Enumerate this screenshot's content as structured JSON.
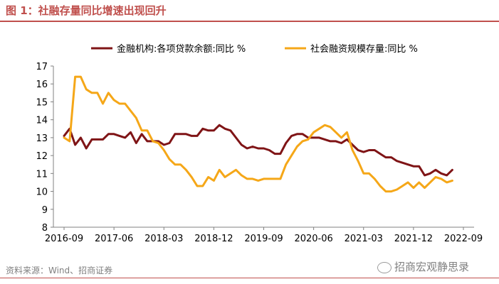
{
  "figure": {
    "title": "图 1：社融存量同比增速出现回升",
    "source": "资料来源：Wind、招商证券",
    "watermark": "招商宏观静思录"
  },
  "chart_data": {
    "type": "line",
    "title": "",
    "xlabel": "",
    "ylabel": "",
    "ylim": [
      8,
      17
    ],
    "yticks": [
      8,
      9,
      10,
      11,
      12,
      13,
      14,
      15,
      16,
      17
    ],
    "xticks": [
      "2016-09",
      "2017-06",
      "2018-03",
      "2018-12",
      "2019-09",
      "2020-06",
      "2021-03",
      "2021-12",
      "2022-09"
    ],
    "grid": false,
    "legend_position": "top",
    "series": [
      {
        "name": "金融机构:各项贷款余额:同比 %",
        "color": "#7f1416",
        "values": [
          13.1,
          13.5,
          12.6,
          13.0,
          12.4,
          12.9,
          12.9,
          12.9,
          13.2,
          13.2,
          13.1,
          13.0,
          13.3,
          12.7,
          13.2,
          12.8,
          12.8,
          12.8,
          12.6,
          12.7,
          13.2,
          13.2,
          13.2,
          13.1,
          13.1,
          13.5,
          13.4,
          13.4,
          13.7,
          13.5,
          13.4,
          13.0,
          12.6,
          12.4,
          12.5,
          12.4,
          12.4,
          12.3,
          12.1,
          12.1,
          12.7,
          13.1,
          13.2,
          13.2,
          13.0,
          13.0,
          13.0,
          12.9,
          12.8,
          12.8,
          12.7,
          12.9,
          12.6,
          12.3,
          12.2,
          12.3,
          12.3,
          12.1,
          11.9,
          11.9,
          11.7,
          11.6,
          11.5,
          11.4,
          11.4,
          10.9,
          11.0,
          11.2,
          11.0,
          10.9,
          11.2
        ]
      },
      {
        "name": "社会融资规模存量:同比 %",
        "color": "#f5a718",
        "values": [
          13.0,
          12.8,
          16.4,
          16.4,
          15.7,
          15.5,
          15.5,
          14.9,
          15.5,
          15.1,
          14.9,
          14.9,
          14.5,
          14.1,
          13.4,
          13.4,
          12.8,
          12.7,
          12.3,
          11.8,
          11.5,
          11.5,
          11.2,
          10.8,
          10.3,
          10.3,
          10.8,
          10.6,
          11.2,
          10.8,
          11.0,
          11.2,
          10.9,
          10.7,
          10.7,
          10.6,
          10.7,
          10.7,
          10.7,
          10.7,
          11.5,
          12.0,
          12.5,
          12.8,
          12.9,
          13.3,
          13.5,
          13.7,
          13.6,
          13.3,
          13.0,
          13.3,
          12.3,
          11.7,
          11.0,
          11.0,
          10.7,
          10.3,
          10.0,
          10.0,
          10.1,
          10.3,
          10.5,
          10.2,
          10.5,
          10.2,
          10.5,
          10.8,
          10.7,
          10.5,
          10.6
        ]
      }
    ]
  }
}
